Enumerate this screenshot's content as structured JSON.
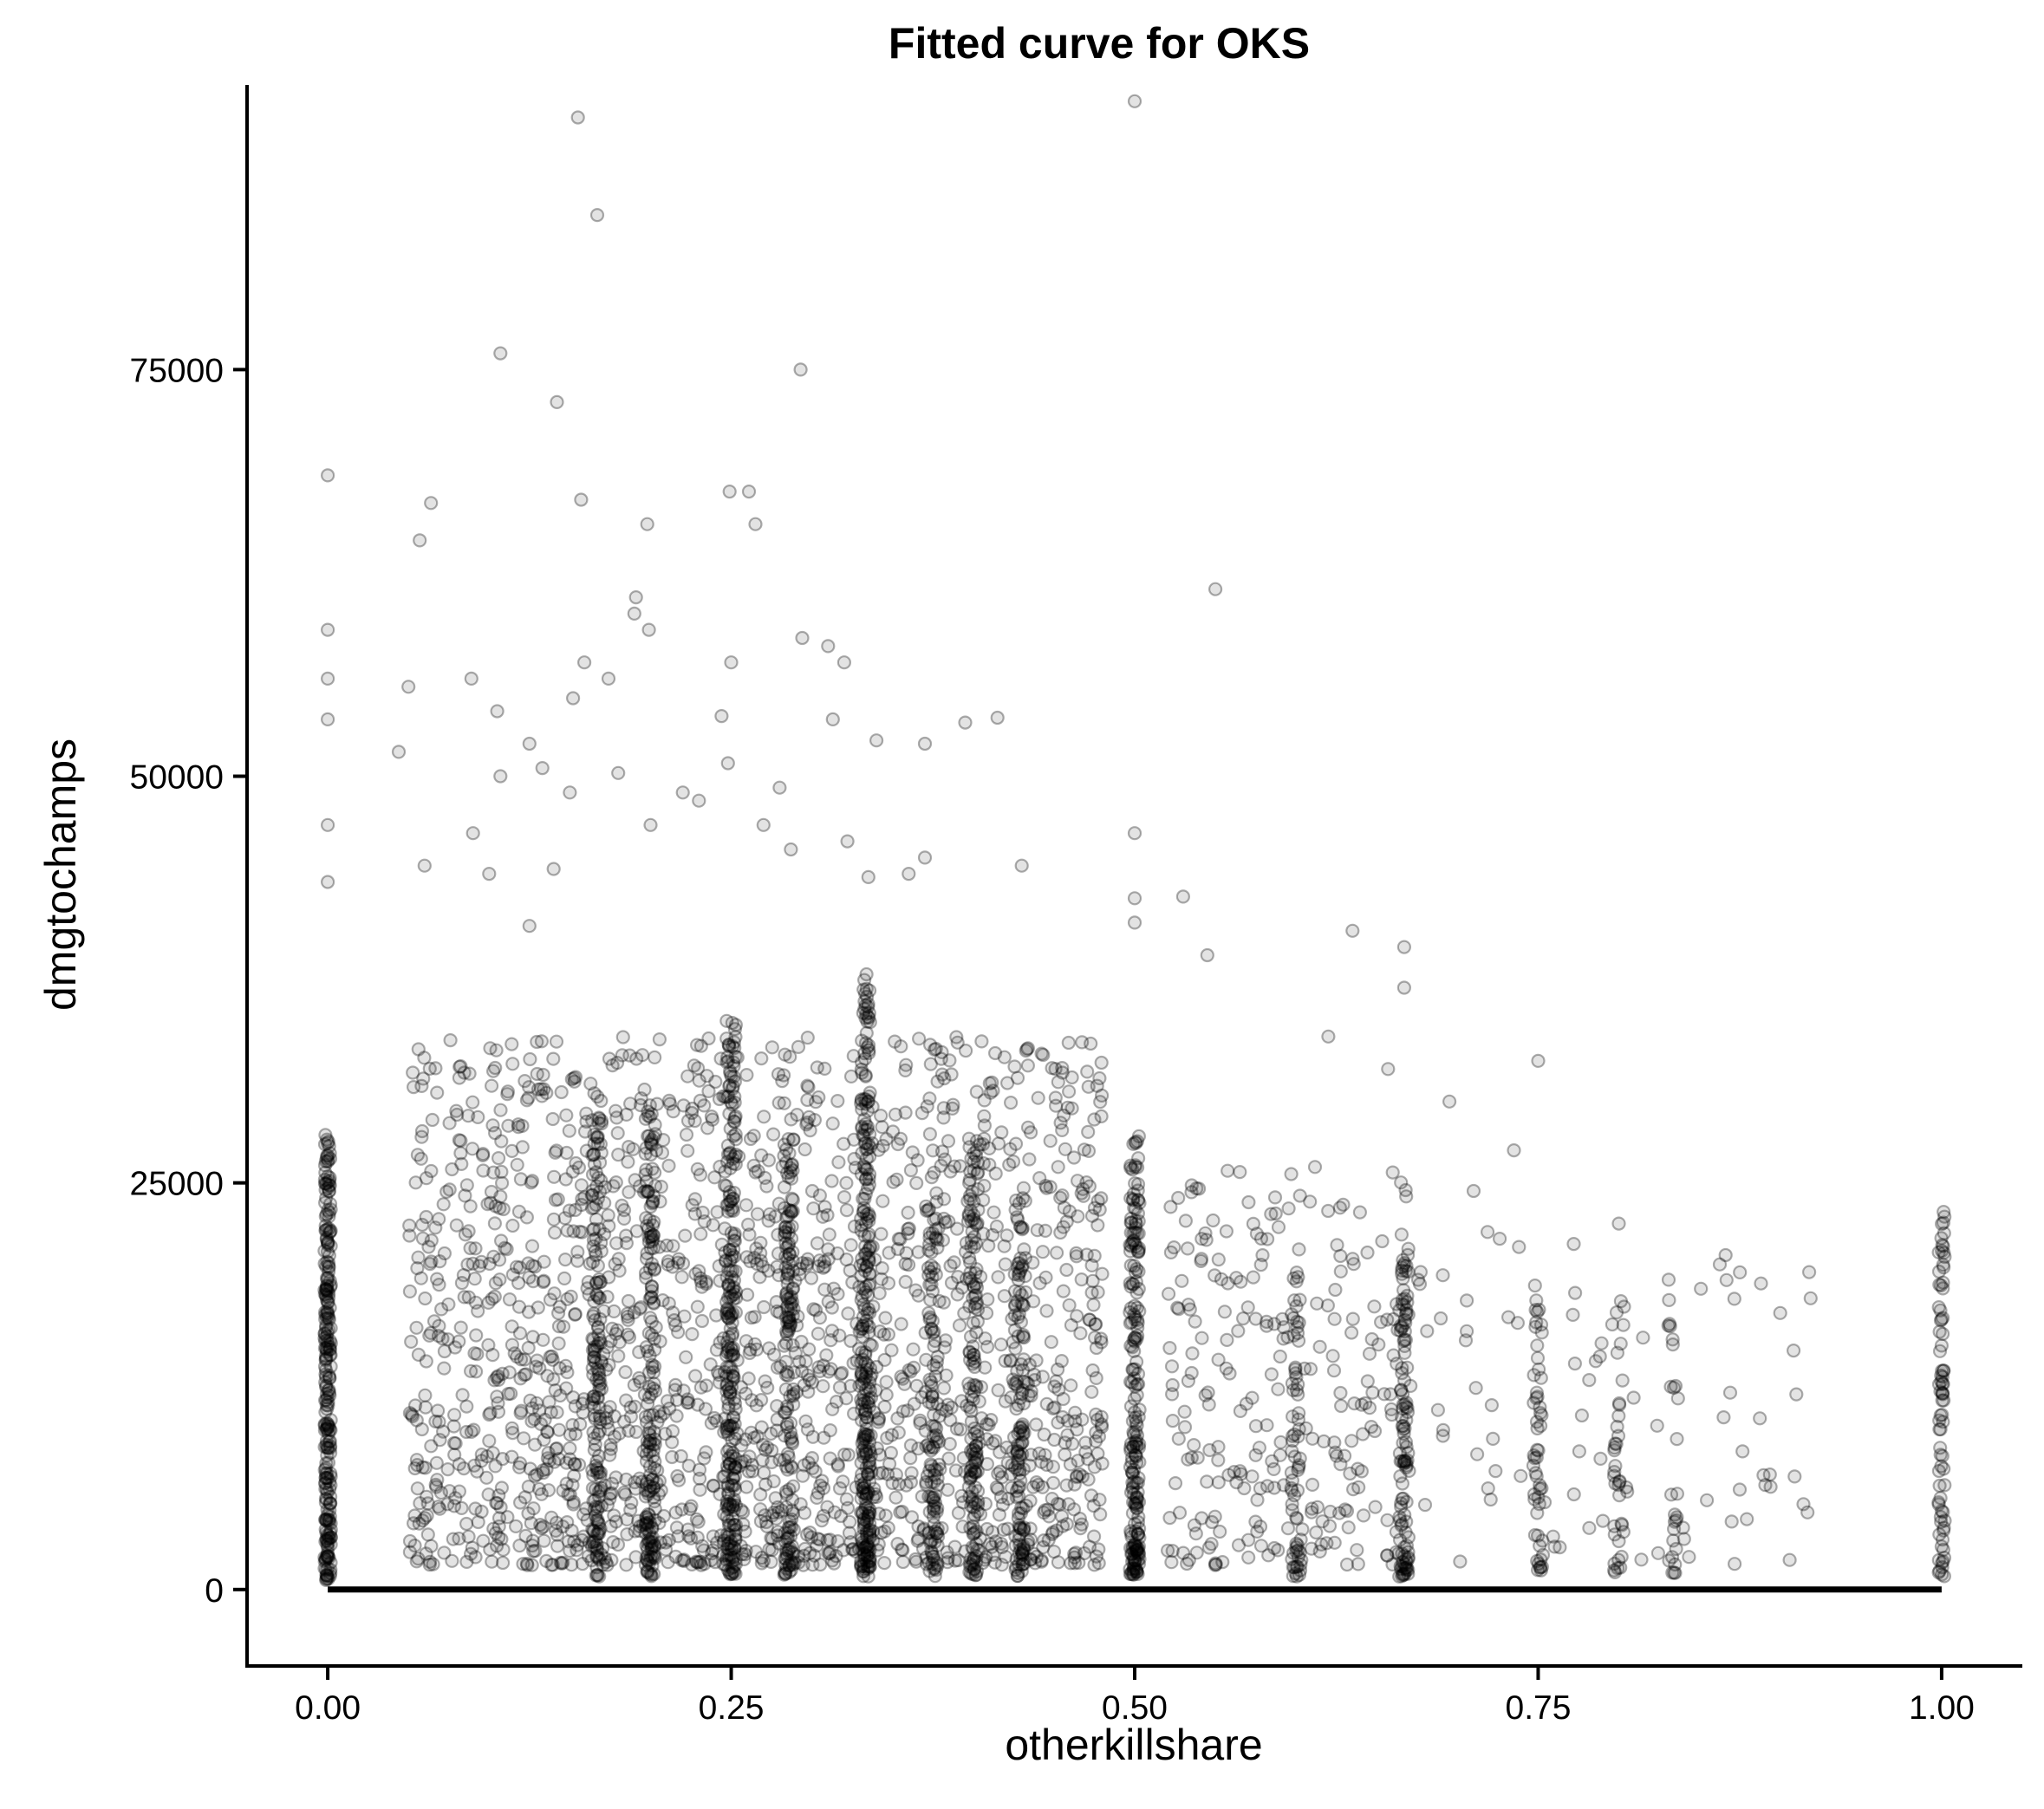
{
  "chart_data": {
    "type": "scatter",
    "title": "Fitted curve for OKS",
    "xlabel": "otherkillshare",
    "ylabel": "dmgtochamps",
    "xlim": [
      -0.05,
      1.05
    ],
    "ylim": [
      -4700,
      92500
    ],
    "x_ticks": [
      {
        "value": 0,
        "label": "0.00"
      },
      {
        "value": 0.25,
        "label": "0.25"
      },
      {
        "value": 0.5,
        "label": "0.50"
      },
      {
        "value": 0.75,
        "label": "0.75"
      },
      {
        "value": 1,
        "label": "1.00"
      }
    ],
    "y_ticks": [
      {
        "value": 0,
        "label": "0"
      },
      {
        "value": 25000,
        "label": "25000"
      },
      {
        "value": 50000,
        "label": "50000"
      },
      {
        "value": 75000,
        "label": "75000"
      }
    ],
    "grid": false,
    "legend": "none",
    "point_color": "#000000",
    "point_alpha": 0.12,
    "series": [
      {
        "type": "scatter",
        "clusters": [
          {
            "x": 0.0,
            "spread": 0.002,
            "n": 260,
            "ymin": 500,
            "ymax": 28000
          },
          {
            "x": 0.1667,
            "spread": 0.003,
            "n": 140,
            "ymin": 800,
            "ymax": 30000
          },
          {
            "x": 0.2,
            "spread": 0.003,
            "n": 150,
            "ymin": 800,
            "ymax": 30000
          },
          {
            "x": 0.25,
            "spread": 0.003,
            "n": 230,
            "ymin": 800,
            "ymax": 35000
          },
          {
            "x": 0.2857,
            "spread": 0.003,
            "n": 130,
            "ymin": 800,
            "ymax": 28000
          },
          {
            "x": 0.3333,
            "spread": 0.003,
            "n": 260,
            "ymin": 800,
            "ymax": 38000
          },
          {
            "x": 0.375,
            "spread": 0.003,
            "n": 100,
            "ymin": 800,
            "ymax": 26000
          },
          {
            "x": 0.4,
            "spread": 0.003,
            "n": 130,
            "ymin": 800,
            "ymax": 28000
          },
          {
            "x": 0.4286,
            "spread": 0.003,
            "n": 100,
            "ymin": 800,
            "ymax": 24000
          },
          {
            "x": 0.5,
            "spread": 0.003,
            "n": 210,
            "ymin": 800,
            "ymax": 28000
          },
          {
            "x": 0.6,
            "spread": 0.003,
            "n": 60,
            "ymin": 800,
            "ymax": 20000
          },
          {
            "x": 0.6667,
            "spread": 0.003,
            "n": 110,
            "ymin": 800,
            "ymax": 22000
          },
          {
            "x": 0.75,
            "spread": 0.003,
            "n": 50,
            "ymin": 1000,
            "ymax": 18000
          },
          {
            "x": 0.8,
            "spread": 0.003,
            "n": 35,
            "ymin": 1000,
            "ymax": 18000
          },
          {
            "x": 0.8333,
            "spread": 0.003,
            "n": 25,
            "ymin": 1000,
            "ymax": 18000
          },
          {
            "x": 1.0,
            "spread": 0.002,
            "n": 80,
            "ymin": 800,
            "ymax": 24000
          }
        ],
        "scatter_bands": [
          {
            "xmin": 0.05,
            "xmax": 0.48,
            "n": 1900,
            "ymin": 1500,
            "ymax": 34000
          },
          {
            "xmin": 0.52,
            "xmax": 0.67,
            "n": 260,
            "ymin": 1500,
            "ymax": 26000
          },
          {
            "xmin": 0.67,
            "xmax": 0.92,
            "n": 90,
            "ymin": 1500,
            "ymax": 22000
          }
        ],
        "outliers": [
          [
            0.0,
            68500
          ],
          [
            0.0,
            59000
          ],
          [
            0.0,
            56000
          ],
          [
            0.0,
            53500
          ],
          [
            0.0,
            47000
          ],
          [
            0.0,
            43500
          ],
          [
            0.155,
            90500
          ],
          [
            0.167,
            84500
          ],
          [
            0.107,
            76000
          ],
          [
            0.142,
            73000
          ],
          [
            0.293,
            75000
          ],
          [
            0.5,
            91500
          ],
          [
            0.064,
            66800
          ],
          [
            0.157,
            67000
          ],
          [
            0.249,
            67500
          ],
          [
            0.261,
            67500
          ],
          [
            0.265,
            65500
          ],
          [
            0.198,
            65500
          ],
          [
            0.057,
            64500
          ],
          [
            0.55,
            61500
          ],
          [
            0.191,
            61000
          ],
          [
            0.19,
            60000
          ],
          [
            0.199,
            59000
          ],
          [
            0.294,
            58500
          ],
          [
            0.31,
            58000
          ],
          [
            0.32,
            57000
          ],
          [
            0.25,
            57000
          ],
          [
            0.159,
            57000
          ],
          [
            0.089,
            56000
          ],
          [
            0.174,
            56000
          ],
          [
            0.05,
            55500
          ],
          [
            0.152,
            54800
          ],
          [
            0.244,
            53700
          ],
          [
            0.313,
            53500
          ],
          [
            0.395,
            53300
          ],
          [
            0.415,
            53600
          ],
          [
            0.34,
            52200
          ],
          [
            0.044,
            51500
          ],
          [
            0.37,
            52000
          ],
          [
            0.133,
            50500
          ],
          [
            0.248,
            50800
          ],
          [
            0.28,
            49300
          ],
          [
            0.5,
            46500
          ],
          [
            0.53,
            42600
          ],
          [
            0.545,
            39000
          ],
          [
            0.635,
            40500
          ],
          [
            0.667,
            39500
          ],
          [
            0.667,
            37000
          ],
          [
            0.62,
            34000
          ],
          [
            0.657,
            32000
          ],
          [
            0.75,
            32500
          ],
          [
            0.695,
            30000
          ],
          [
            0.71,
            24500
          ],
          [
            0.735,
            27000
          ],
          [
            0.8,
            22500
          ],
          [
            0.9,
            17000
          ],
          [
            0.875,
            19500
          ],
          [
            0.91,
            12000
          ],
          [
            0.5,
            41000
          ],
          [
            0.5,
            42500
          ],
          [
            0.43,
            44500
          ],
          [
            0.36,
            44000
          ],
          [
            0.37,
            45000
          ],
          [
            0.335,
            43800
          ],
          [
            0.287,
            45500
          ],
          [
            0.322,
            46000
          ],
          [
            0.105,
            54000
          ],
          [
            0.107,
            50000
          ],
          [
            0.125,
            52000
          ],
          [
            0.15,
            49000
          ],
          [
            0.2,
            47000
          ],
          [
            0.18,
            50200
          ],
          [
            0.23,
            48500
          ],
          [
            0.22,
            49000
          ],
          [
            0.27,
            47000
          ],
          [
            0.1,
            44000
          ],
          [
            0.06,
            44500
          ],
          [
            0.14,
            44300
          ],
          [
            0.125,
            40800
          ],
          [
            0.09,
            46500
          ]
        ]
      },
      {
        "type": "line",
        "name": "",
        "x": [
          0.0,
          0.25,
          0.5,
          0.75,
          1.0
        ],
        "y": [
          0,
          0,
          0,
          0,
          0
        ]
      }
    ]
  }
}
